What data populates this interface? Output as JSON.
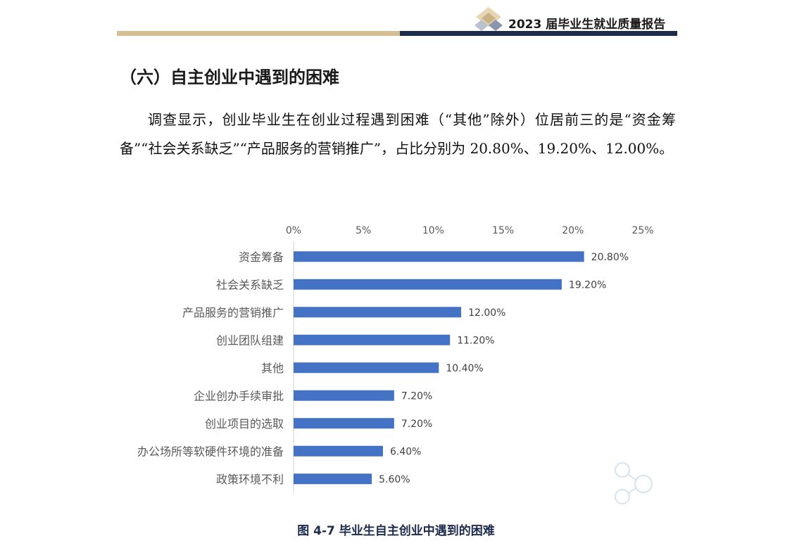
{
  "header": {
    "title": "2023 届毕业生就业质量报告"
  },
  "section": {
    "title": "（六）自主创业中遇到的困难"
  },
  "body": {
    "paragraph": "调查显示，创业毕业生在创业过程遇到困难（“其他”除外）位居前三的是“资金筹备”“社会关系缺乏”“产品服务的营销推广”，占比分别为 20.80%、19.20%、12.00%。"
  },
  "chart_data": {
    "type": "bar",
    "orientation": "horizontal",
    "categories": [
      "资金筹备",
      "社会关系缺乏",
      "产品服务的营销推广",
      "创业团队组建",
      "其他",
      "企业创办手续审批",
      "创业项目的选取",
      "办公场所等软硬件环境的准备",
      "政策环境不利"
    ],
    "values": [
      20.8,
      19.2,
      12.0,
      11.2,
      10.4,
      7.2,
      7.2,
      6.4,
      5.6
    ],
    "data_labels": [
      "20.80%",
      "19.20%",
      "12.00%",
      "11.20%",
      "10.40%",
      "7.20%",
      "7.20%",
      "6.40%",
      "5.60%"
    ],
    "x_ticks": [
      "0%",
      "5%",
      "10%",
      "15%",
      "20%",
      "25%"
    ],
    "xlim": [
      0,
      25
    ],
    "axis_position": "top",
    "grid": false,
    "bar_color": "#4472c4",
    "title": "",
    "xlabel": "",
    "ylabel": ""
  },
  "caption": {
    "text": "图 4-7 毕业生自主创业中遇到的困难"
  },
  "colors": {
    "gold_rule": "#d4bf94",
    "navy_rule": "#1d2b4d",
    "caption": "#1d2b4d"
  }
}
